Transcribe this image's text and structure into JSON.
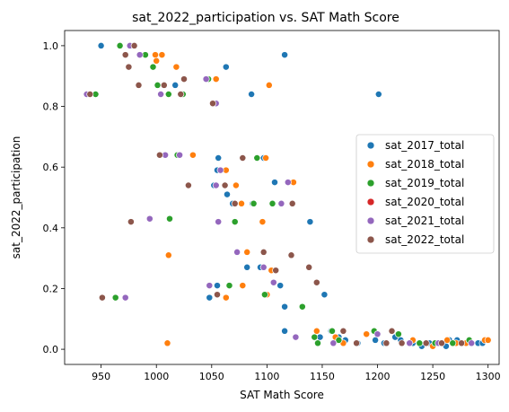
{
  "chart_data": {
    "type": "scatter",
    "title": "sat_2022_participation vs. SAT Math Score",
    "xlabel": "SAT Math Score",
    "ylabel": "sat_2022_participation",
    "xlim": [
      917,
      1310
    ],
    "ylim": [
      -0.05,
      1.05
    ],
    "xticks": [
      950,
      1000,
      1050,
      1100,
      1150,
      1200,
      1250,
      1300
    ],
    "yticks": [
      0.0,
      0.2,
      0.4,
      0.6,
      0.8,
      1.0
    ],
    "xtick_labels": [
      "950",
      "1000",
      "1050",
      "1100",
      "1150",
      "1200",
      "1250",
      "1300"
    ],
    "ytick_labels": [
      "0.0",
      "0.2",
      "0.4",
      "0.6",
      "0.8",
      "1.0"
    ],
    "grid": false,
    "legend_position": "center-right",
    "series": [
      {
        "name": "sat_2017_total",
        "color": "#1f77b4",
        "points": [
          [
            950,
            1.0
          ],
          [
            1116,
            0.97
          ],
          [
            1063,
            0.93
          ],
          [
            1017,
            0.87
          ],
          [
            1086,
            0.84
          ],
          [
            1201,
            0.84
          ],
          [
            1056,
            0.63
          ],
          [
            1097,
            0.63
          ],
          [
            1055,
            0.59
          ],
          [
            1052,
            0.54
          ],
          [
            1064,
            0.51
          ],
          [
            1107,
            0.55
          ],
          [
            1069,
            0.48
          ],
          [
            1087,
            0.48
          ],
          [
            1139,
            0.42
          ],
          [
            1082,
            0.27
          ],
          [
            1094,
            0.27
          ],
          [
            1112,
            0.21
          ],
          [
            1055,
            0.21
          ],
          [
            1048,
            0.17
          ],
          [
            1152,
            0.18
          ],
          [
            1116,
            0.14
          ],
          [
            1116,
            0.06
          ],
          [
            1148,
            0.04
          ],
          [
            1158,
            0.06
          ],
          [
            1165,
            0.04
          ],
          [
            1171,
            0.03
          ],
          [
            1182,
            0.02
          ],
          [
            1198,
            0.03
          ],
          [
            1206,
            0.02
          ],
          [
            1216,
            0.04
          ],
          [
            1221,
            0.03
          ],
          [
            1232,
            0.02
          ],
          [
            1240,
            0.01
          ],
          [
            1247,
            0.02
          ],
          [
            1256,
            0.02
          ],
          [
            1262,
            0.01
          ],
          [
            1265,
            0.03
          ],
          [
            1272,
            0.03
          ],
          [
            1281,
            0.02
          ],
          [
            1291,
            0.02
          ],
          [
            1295,
            0.02
          ]
        ]
      },
      {
        "name": "sat_2018_total",
        "color": "#ff7f0e",
        "points": [
          [
            999,
            0.97
          ],
          [
            1005,
            0.97
          ],
          [
            1018,
            0.93
          ],
          [
            1000,
            0.95
          ],
          [
            1054,
            0.89
          ],
          [
            1102,
            0.87
          ],
          [
            1033,
            0.64
          ],
          [
            1099,
            0.63
          ],
          [
            1063,
            0.59
          ],
          [
            1072,
            0.54
          ],
          [
            1124,
            0.55
          ],
          [
            1077,
            0.48
          ],
          [
            1096,
            0.42
          ],
          [
            1082,
            0.32
          ],
          [
            1104,
            0.26
          ],
          [
            1011,
            0.31
          ],
          [
            1078,
            0.21
          ],
          [
            1063,
            0.17
          ],
          [
            1010,
            0.02
          ],
          [
            1100,
            0.18
          ],
          [
            1145,
            0.06
          ],
          [
            1162,
            0.04
          ],
          [
            1169,
            0.02
          ],
          [
            1190,
            0.05
          ],
          [
            1208,
            0.02
          ],
          [
            1232,
            0.03
          ],
          [
            1250,
            0.01
          ],
          [
            1263,
            0.03
          ],
          [
            1271,
            0.02
          ],
          [
            1280,
            0.02
          ],
          [
            1297,
            0.03
          ],
          [
            1300,
            0.03
          ]
        ]
      },
      {
        "name": "sat_2019_total",
        "color": "#2ca02c",
        "points": [
          [
            967,
            1.0
          ],
          [
            990,
            0.97
          ],
          [
            997,
            0.93
          ],
          [
            1001,
            0.87
          ],
          [
            1011,
            0.84
          ],
          [
            945,
            0.84
          ],
          [
            1024,
            0.84
          ],
          [
            1047,
            0.89
          ],
          [
            1019,
            0.64
          ],
          [
            1091,
            0.63
          ],
          [
            1012,
            0.43
          ],
          [
            1071,
            0.42
          ],
          [
            1088,
            0.48
          ],
          [
            1105,
            0.48
          ],
          [
            963,
            0.17
          ],
          [
            1066,
            0.21
          ],
          [
            1098,
            0.18
          ],
          [
            1132,
            0.14
          ],
          [
            1143,
            0.04
          ],
          [
            1146,
            0.02
          ],
          [
            1159,
            0.06
          ],
          [
            1165,
            0.03
          ],
          [
            1197,
            0.06
          ],
          [
            1219,
            0.05
          ],
          [
            1238,
            0.02
          ],
          [
            1252,
            0.02
          ],
          [
            1268,
            0.02
          ],
          [
            1283,
            0.03
          ]
        ]
      },
      {
        "name": "sat_2020_total",
        "color": "#d62728",
        "points": []
      },
      {
        "name": "sat_2021_total",
        "color": "#9467bd",
        "points": [
          [
            976,
            1.0
          ],
          [
            985,
            0.97
          ],
          [
            937,
            0.84
          ],
          [
            1004,
            0.84
          ],
          [
            1045,
            0.89
          ],
          [
            1054,
            0.81
          ],
          [
            1008,
            0.64
          ],
          [
            1021,
            0.64
          ],
          [
            1058,
            0.59
          ],
          [
            1054,
            0.54
          ],
          [
            1113,
            0.48
          ],
          [
            1119,
            0.55
          ],
          [
            994,
            0.43
          ],
          [
            1056,
            0.42
          ],
          [
            972,
            0.17
          ],
          [
            1073,
            0.32
          ],
          [
            1097,
            0.27
          ],
          [
            1106,
            0.22
          ],
          [
            1048,
            0.21
          ],
          [
            1126,
            0.04
          ],
          [
            1160,
            0.02
          ],
          [
            1200,
            0.05
          ],
          [
            1229,
            0.02
          ],
          [
            1255,
            0.02
          ],
          [
            1285,
            0.02
          ]
        ]
      },
      {
        "name": "sat_2022_total",
        "color": "#8c564b",
        "points": [
          [
            980,
            1.0
          ],
          [
            972,
            0.97
          ],
          [
            975,
            0.93
          ],
          [
            984,
            0.87
          ],
          [
            1007,
            0.87
          ],
          [
            1025,
            0.89
          ],
          [
            940,
            0.84
          ],
          [
            1022,
            0.84
          ],
          [
            1051,
            0.81
          ],
          [
            1003,
            0.64
          ],
          [
            1078,
            0.63
          ],
          [
            1029,
            0.54
          ],
          [
            1062,
            0.54
          ],
          [
            1071,
            0.48
          ],
          [
            1123,
            0.48
          ],
          [
            977,
            0.42
          ],
          [
            951,
            0.17
          ],
          [
            1055,
            0.18
          ],
          [
            1097,
            0.32
          ],
          [
            1122,
            0.31
          ],
          [
            1138,
            0.27
          ],
          [
            1108,
            0.26
          ],
          [
            1145,
            0.22
          ],
          [
            1169,
            0.06
          ],
          [
            1181,
            0.02
          ],
          [
            1208,
            0.02
          ],
          [
            1213,
            0.06
          ],
          [
            1222,
            0.02
          ],
          [
            1244,
            0.02
          ],
          [
            1258,
            0.02
          ],
          [
            1276,
            0.02
          ]
        ]
      }
    ]
  }
}
